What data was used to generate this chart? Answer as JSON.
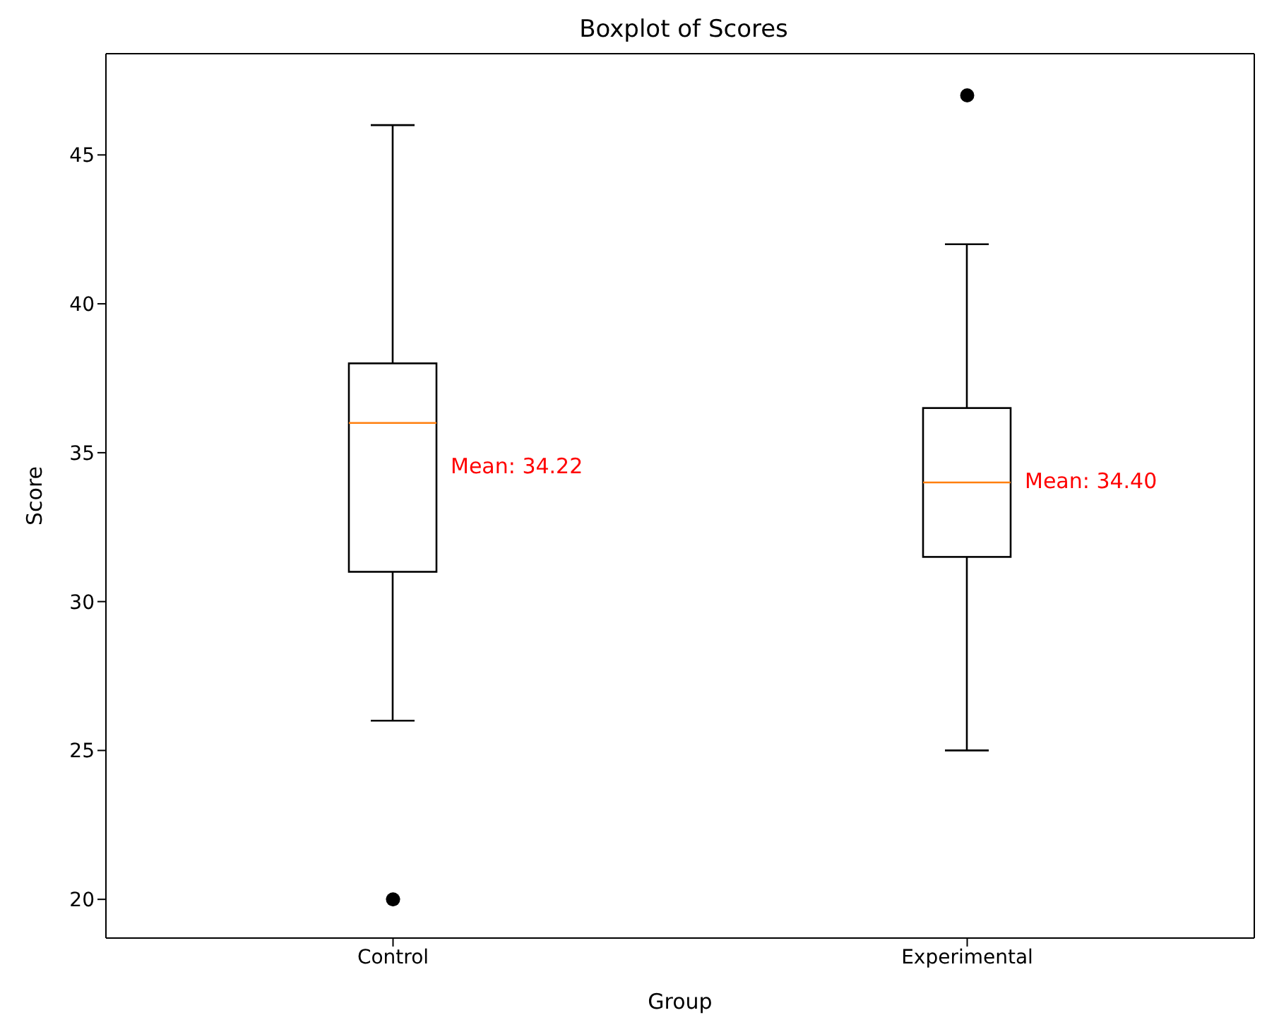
{
  "chart_data": {
    "type": "box",
    "title": "Boxplot of Scores",
    "xlabel": "Group",
    "ylabel": "Score",
    "categories": [
      "Control",
      "Experimental"
    ],
    "boxes": [
      {
        "low": 26,
        "q1": 31,
        "median": 36,
        "q3": 38,
        "high": 46,
        "outliers": [
          20
        ]
      },
      {
        "low": 25,
        "q1": 31.5,
        "median": 34,
        "q3": 36.5,
        "high": 42,
        "outliers": [
          47
        ]
      }
    ],
    "color": "#000000",
    "ylim": [
      18.7,
      48.4
    ],
    "yticks": [
      20,
      25,
      30,
      35,
      40,
      45
    ],
    "grid": false,
    "annotations": [
      "Mean: 34.22",
      "Mean: 34.40"
    ]
  }
}
